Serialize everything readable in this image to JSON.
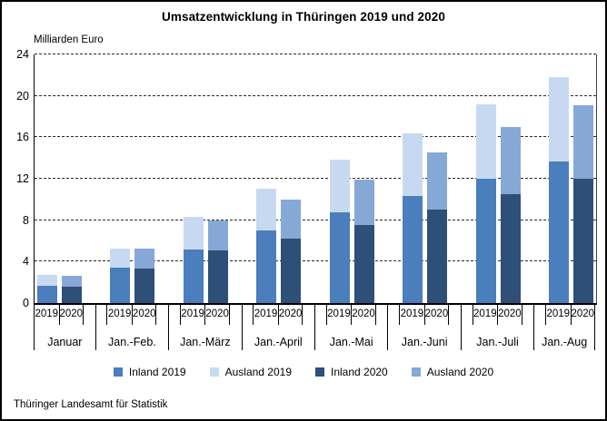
{
  "title": "Umsatzentwicklung in Thüringen 2019 und 2020",
  "source": "Thüringer Landesamt für Statistik",
  "chart_data": {
    "type": "bar",
    "variant": "grouped-stacked",
    "title": "Umsatzentwicklung in Thüringen 2019 und 2020",
    "y_axis_caption": "Milliarden Euro",
    "ylim": [
      0,
      24
    ],
    "yticks": [
      0,
      4,
      8,
      12,
      16,
      20,
      24
    ],
    "grid": "horizontal-dashed",
    "legend_position": "bottom",
    "categories": [
      "Januar",
      "Jan.-Feb.",
      "Jan.-März",
      "Jan.-April",
      "Jan.-Mai",
      "Jan.-Juni",
      "Jan.-Juli",
      "Jan.-Aug"
    ],
    "bar_group_labels": [
      "2019",
      "2020"
    ],
    "series": [
      {
        "name": "Inland 2019",
        "bar": "2019",
        "stack_order": 0,
        "color": "#4a7ebc",
        "values": [
          1.7,
          3.4,
          5.2,
          7.0,
          8.8,
          10.3,
          12.0,
          13.7
        ]
      },
      {
        "name": "Ausland 2019",
        "bar": "2019",
        "stack_order": 1,
        "color": "#c7d9f1",
        "values": [
          1.0,
          1.9,
          3.1,
          4.0,
          5.0,
          6.1,
          7.2,
          8.1
        ]
      },
      {
        "name": "Inland 2020",
        "bar": "2020",
        "stack_order": 0,
        "color": "#2e4f78",
        "values": [
          1.6,
          3.3,
          5.1,
          6.2,
          7.5,
          9.0,
          10.5,
          12.0
        ]
      },
      {
        "name": "Ausland 2020",
        "bar": "2020",
        "stack_order": 1,
        "color": "#85a8d7",
        "values": [
          1.0,
          2.0,
          2.9,
          3.8,
          4.4,
          5.5,
          6.5,
          7.1
        ]
      }
    ],
    "totals_2019": [
      2.7,
      5.3,
      8.3,
      11.0,
      13.8,
      16.4,
      19.2,
      21.8
    ],
    "totals_2020": [
      2.6,
      5.3,
      8.0,
      10.0,
      11.9,
      14.5,
      17.0,
      19.1
    ]
  }
}
